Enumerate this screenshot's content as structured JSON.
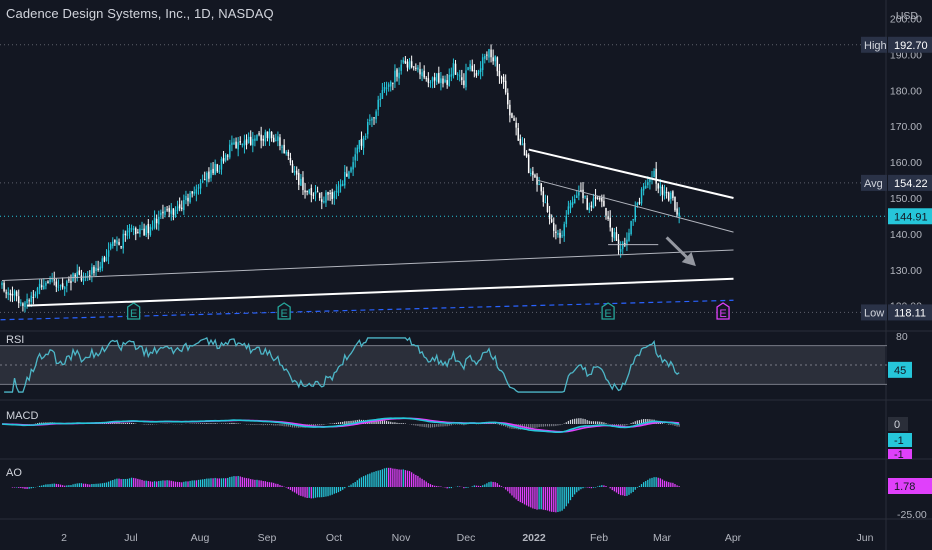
{
  "header": {
    "title": "Cadence Design Systems, Inc., 1D, NASDAQ",
    "currency": "USD"
  },
  "colors": {
    "background": "#131722",
    "candle_up": "#26c6da",
    "candle_down": "#ffffff",
    "trendline": "#ffffff",
    "dashed_line": "#2962ff",
    "rsi_line": "#4db6c7",
    "macd_line": "#26c6da",
    "signal_line": "#e040fb",
    "ao_up": "#26c6da",
    "ao_down": "#e040fb",
    "price_tag": "#26c6da",
    "earnings_past": "#26a69a",
    "earnings_future": "#e040fb"
  },
  "price_axis": {
    "ticks": [
      "200.00",
      "190.00",
      "180.00",
      "170.00",
      "160.00",
      "150.00",
      "140.00",
      "130.00",
      "120.00"
    ],
    "high_label": "High",
    "high_value": "192.70",
    "avg_label": "Avg",
    "avg_value": "154.22",
    "last_value": "144.91",
    "low_label": "Low",
    "low_value": "118.11"
  },
  "time_axis": {
    "labels": [
      "2",
      "Jul",
      "Aug",
      "Sep",
      "Oct",
      "Nov",
      "Dec",
      "2022",
      "Feb",
      "Mar",
      "Apr",
      "Jun"
    ]
  },
  "earnings_marker": "E",
  "panes": {
    "rsi": {
      "label": "RSI",
      "axis_top": "80",
      "value": "45"
    },
    "macd": {
      "label": "MACD",
      "value_hist": "0",
      "value_macd": "-1",
      "value_signal": "-1"
    },
    "ao": {
      "label": "AO",
      "value": "1.78",
      "axis_bottom": "-25.00"
    }
  },
  "chart_data": {
    "type": "candlestick",
    "title": "Cadence Design Systems, Inc., 1D, NASDAQ",
    "ylim": [
      116,
      201
    ],
    "y_ticks": [
      120,
      130,
      140,
      150,
      160,
      170,
      180,
      190,
      200
    ],
    "x_range_months": [
      "2021-06",
      "2022-06"
    ],
    "price_path": [
      [
        0,
        125.5
      ],
      [
        4,
        124
      ],
      [
        8,
        122
      ],
      [
        12,
        121
      ],
      [
        16,
        124
      ],
      [
        20,
        127
      ],
      [
        24,
        126
      ],
      [
        28,
        125
      ],
      [
        32,
        127.5
      ],
      [
        36,
        128
      ],
      [
        40,
        127
      ],
      [
        44,
        130
      ],
      [
        48,
        133
      ],
      [
        52,
        136
      ],
      [
        56,
        137
      ],
      [
        60,
        140
      ],
      [
        64,
        141
      ],
      [
        68,
        140.5
      ],
      [
        72,
        143
      ],
      [
        76,
        145
      ],
      [
        80,
        146
      ],
      [
        84,
        147
      ],
      [
        88,
        149
      ],
      [
        92,
        152
      ],
      [
        96,
        155
      ],
      [
        100,
        157
      ],
      [
        104,
        159
      ],
      [
        108,
        163
      ],
      [
        112,
        165
      ],
      [
        116,
        166
      ],
      [
        120,
        166.5
      ],
      [
        124,
        167
      ],
      [
        128,
        168
      ],
      [
        132,
        166
      ],
      [
        136,
        162
      ],
      [
        140,
        157
      ],
      [
        144,
        153
      ],
      [
        148,
        151
      ],
      [
        152,
        150
      ],
      [
        156,
        150
      ],
      [
        160,
        152
      ],
      [
        164,
        156
      ],
      [
        168,
        161
      ],
      [
        172,
        166
      ],
      [
        176,
        171
      ],
      [
        180,
        176
      ],
      [
        184,
        181
      ],
      [
        188,
        184
      ],
      [
        192,
        187
      ],
      [
        196,
        188
      ],
      [
        200,
        185
      ],
      [
        204,
        181
      ],
      [
        208,
        184
      ],
      [
        212,
        182
      ],
      [
        216,
        186
      ],
      [
        220,
        182
      ],
      [
        224,
        186
      ],
      [
        228,
        185
      ],
      [
        232,
        191
      ],
      [
        236,
        188
      ],
      [
        240,
        181
      ],
      [
        244,
        172
      ],
      [
        248,
        166
      ],
      [
        250,
        163
      ],
      [
        252,
        158
      ],
      [
        256,
        155
      ],
      [
        260,
        148
      ],
      [
        264,
        142
      ],
      [
        268,
        140
      ],
      [
        272,
        149
      ],
      [
        276,
        152
      ],
      [
        280,
        148
      ],
      [
        284,
        150
      ],
      [
        288,
        147
      ],
      [
        292,
        140
      ],
      [
        296,
        136
      ],
      [
        300,
        140
      ],
      [
        304,
        148
      ],
      [
        308,
        154
      ],
      [
        312,
        156
      ],
      [
        316,
        152
      ],
      [
        320,
        150
      ],
      [
        324,
        145
      ]
    ],
    "trendlines": {
      "upper_thick": [
        [
          252,
          163.5
        ],
        [
          350,
          150
        ]
      ],
      "upper_thin": [
        [
          256,
          155
        ],
        [
          350,
          140.5
        ]
      ],
      "lower_thin": [
        [
          0,
          127
        ],
        [
          350,
          135.5
        ]
      ],
      "lower_thick": [
        [
          12,
          120
        ],
        [
          350,
          127.5
        ]
      ],
      "support_box": [
        [
          290,
          137
        ],
        [
          314,
          137
        ]
      ],
      "dashed": [
        [
          -5,
          116
        ],
        [
          350,
          121.5
        ]
      ]
    },
    "arrow": {
      "from": [
        318,
        139
      ],
      "to": [
        332,
        131
      ]
    },
    "earnings": [
      {
        "x": 63,
        "type": "past"
      },
      {
        "x": 135,
        "type": "past"
      },
      {
        "x": 290,
        "type": "past"
      },
      {
        "x": 345,
        "type": "future"
      }
    ],
    "reference_levels": {
      "high": 192.7,
      "avg": 154.22,
      "last": 144.91,
      "low": 118.11
    },
    "rsi": {
      "band_upper": 70,
      "band_lower": 30,
      "mid": 50,
      "last": 45
    },
    "macd": {
      "last_hist": 0,
      "last_macd": -1,
      "last_signal": -1
    },
    "ao": {
      "last": 1.78,
      "min_label": -25.0
    }
  }
}
